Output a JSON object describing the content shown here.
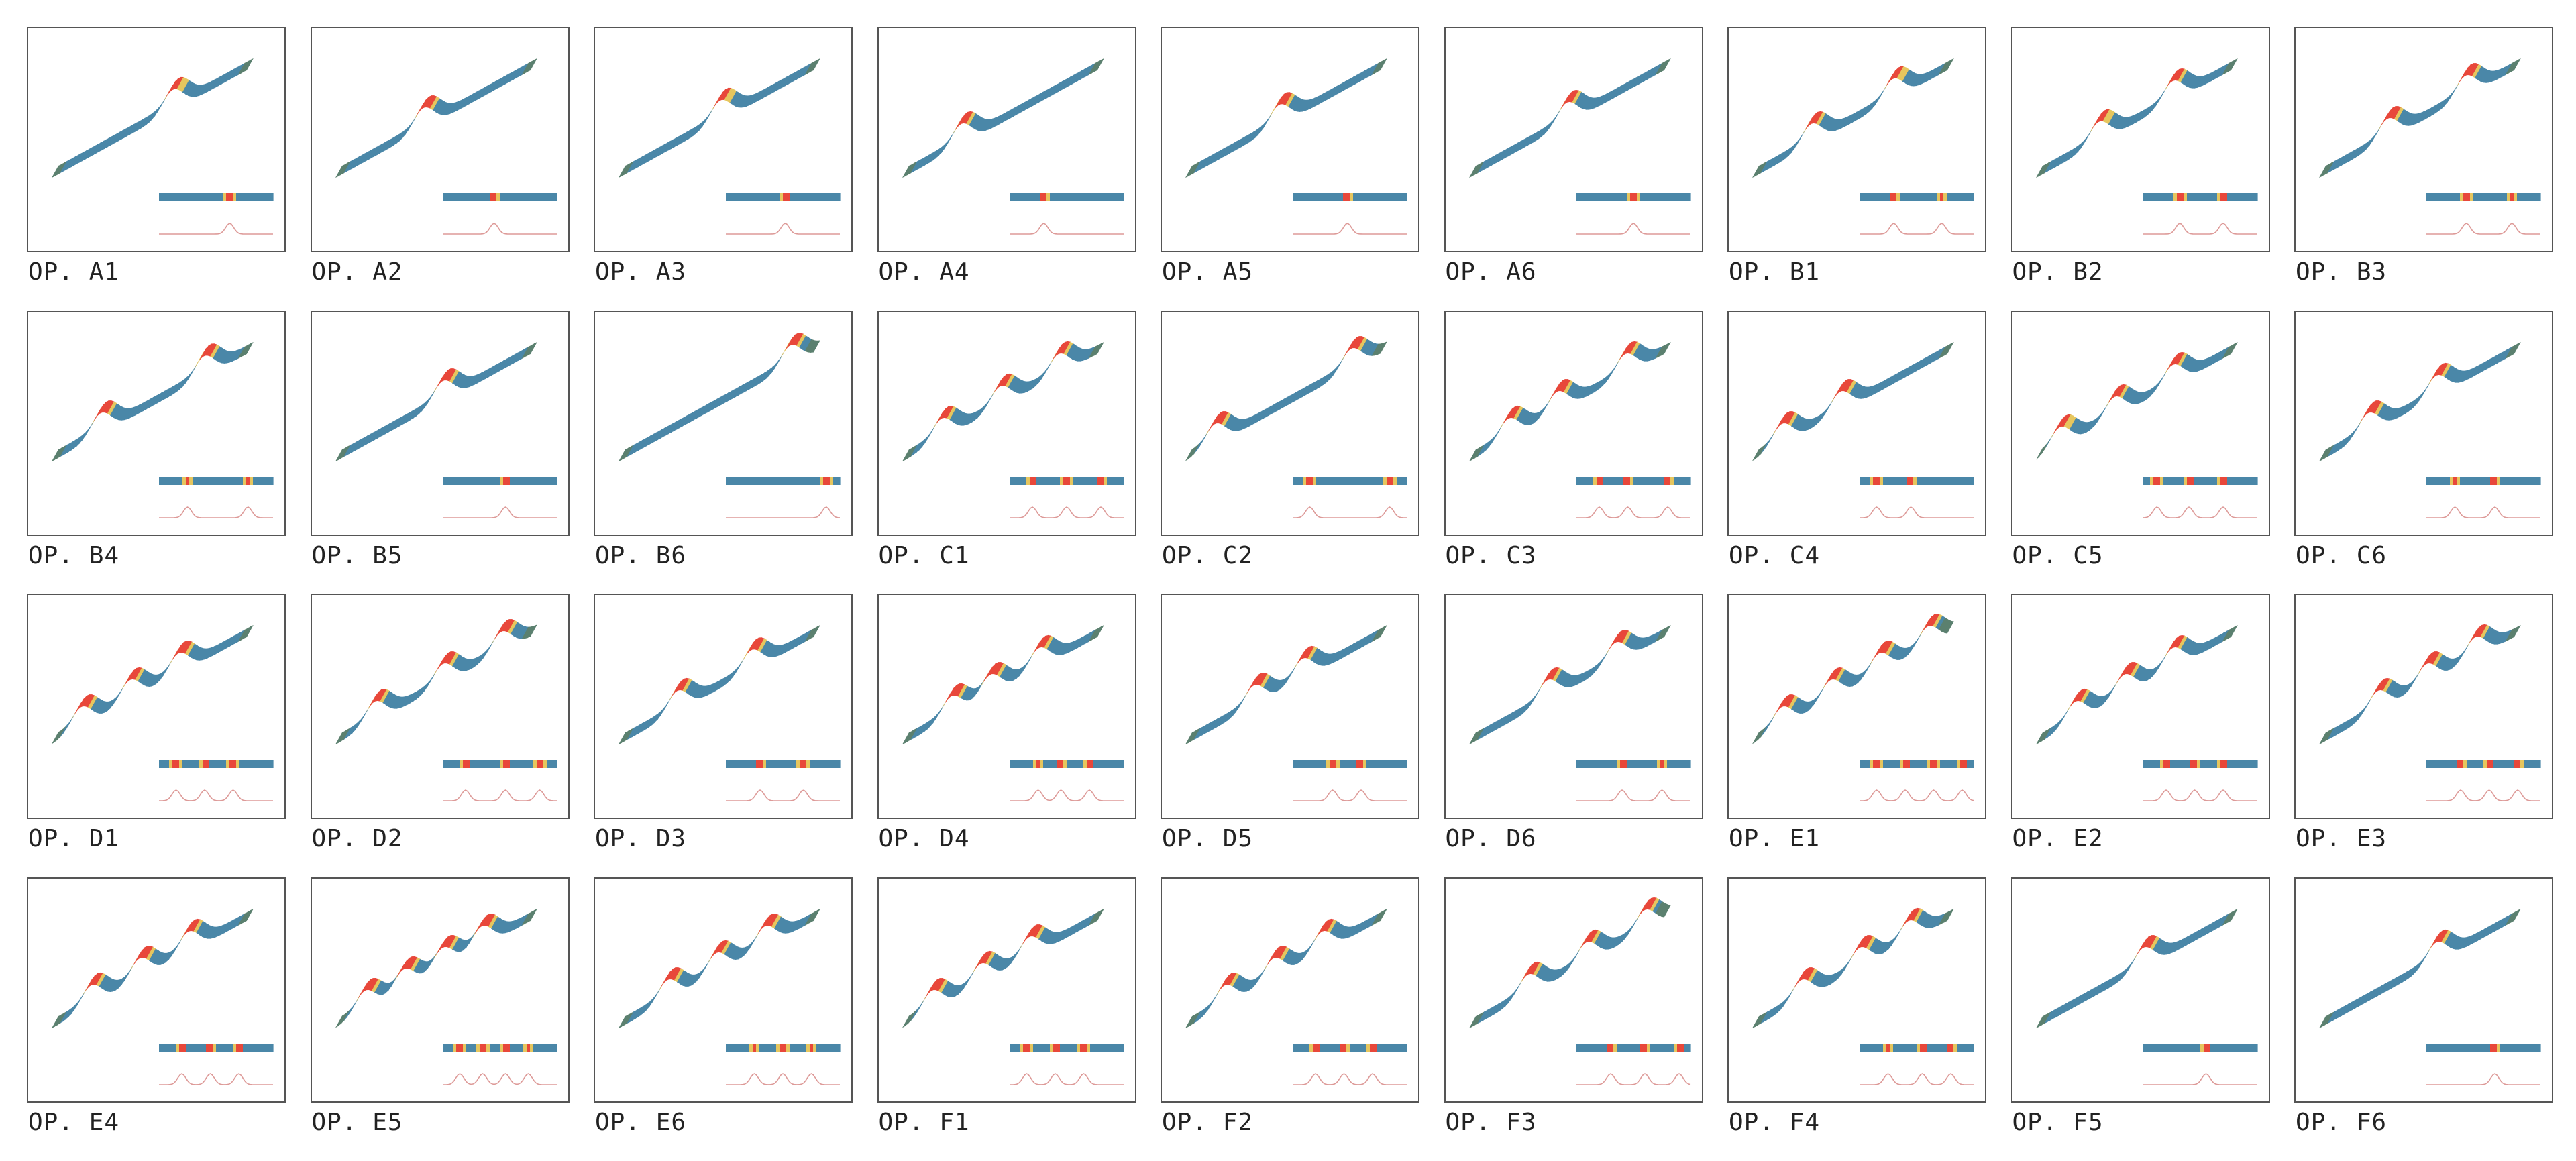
{
  "palette": {
    "blue": "#4a87a8",
    "green": "#5b806f",
    "yellow": "#e6c65e",
    "red": "#e8473a",
    "profile": "#dd9a98",
    "border": "#555555",
    "text": "#222222"
  },
  "panels": [
    {
      "label": "OP. A1",
      "peaks": [
        0.62
      ]
    },
    {
      "label": "OP. A2",
      "peaks": [
        0.45
      ]
    },
    {
      "label": "OP. A3",
      "peaks": [
        0.52
      ]
    },
    {
      "label": "OP. A4",
      "peaks": [
        0.3
      ]
    },
    {
      "label": "OP. A5",
      "peaks": [
        0.48
      ]
    },
    {
      "label": "OP. A6",
      "peaks": [
        0.5
      ]
    },
    {
      "label": "OP. B1",
      "peaks": [
        0.3,
        0.72
      ]
    },
    {
      "label": "OP. B2",
      "peaks": [
        0.32,
        0.7
      ]
    },
    {
      "label": "OP. B3",
      "peaks": [
        0.35,
        0.75
      ]
    },
    {
      "label": "OP. B4",
      "peaks": [
        0.25,
        0.78
      ]
    },
    {
      "label": "OP. B5",
      "peaks": [
        0.55
      ]
    },
    {
      "label": "OP. B6",
      "peaks": [
        0.88
      ]
    },
    {
      "label": "OP. C1",
      "peaks": [
        0.2,
        0.5,
        0.8
      ]
    },
    {
      "label": "OP. C2",
      "peaks": [
        0.15,
        0.85
      ]
    },
    {
      "label": "OP. C3",
      "peaks": [
        0.2,
        0.45,
        0.8
      ]
    },
    {
      "label": "OP. C4",
      "peaks": [
        0.15,
        0.45
      ]
    },
    {
      "label": "OP. C5",
      "peaks": [
        0.12,
        0.4,
        0.7
      ]
    },
    {
      "label": "OP. C6",
      "peaks": [
        0.25,
        0.6
      ]
    },
    {
      "label": "OP. D1",
      "peaks": [
        0.15,
        0.4,
        0.65
      ]
    },
    {
      "label": "OP. D2",
      "peaks": [
        0.2,
        0.55,
        0.85
      ]
    },
    {
      "label": "OP. D3",
      "peaks": [
        0.3,
        0.68
      ]
    },
    {
      "label": "OP. D4",
      "peaks": [
        0.25,
        0.45,
        0.7
      ]
    },
    {
      "label": "OP. D5",
      "peaks": [
        0.35,
        0.6
      ]
    },
    {
      "label": "OP. D6",
      "peaks": [
        0.4,
        0.75
      ]
    },
    {
      "label": "OP. E1",
      "peaks": [
        0.15,
        0.4,
        0.65,
        0.9
      ]
    },
    {
      "label": "OP. E2",
      "peaks": [
        0.2,
        0.45,
        0.7
      ]
    },
    {
      "label": "OP. E3",
      "peaks": [
        0.3,
        0.55,
        0.8
      ]
    },
    {
      "label": "OP. E4",
      "peaks": [
        0.2,
        0.45,
        0.7
      ]
    },
    {
      "label": "OP. E5",
      "peaks": [
        0.15,
        0.35,
        0.55,
        0.75
      ]
    },
    {
      "label": "OP. E6",
      "peaks": [
        0.25,
        0.5,
        0.75
      ]
    },
    {
      "label": "OP. F1",
      "peaks": [
        0.15,
        0.4,
        0.65
      ]
    },
    {
      "label": "OP. F2",
      "peaks": [
        0.2,
        0.45,
        0.7
      ]
    },
    {
      "label": "OP. F3",
      "peaks": [
        0.3,
        0.6,
        0.9
      ]
    },
    {
      "label": "OP. F4",
      "peaks": [
        0.25,
        0.55,
        0.8
      ]
    },
    {
      "label": "OP. F5",
      "peaks": [
        0.55
      ]
    },
    {
      "label": "OP. F6",
      "peaks": [
        0.6
      ]
    }
  ]
}
